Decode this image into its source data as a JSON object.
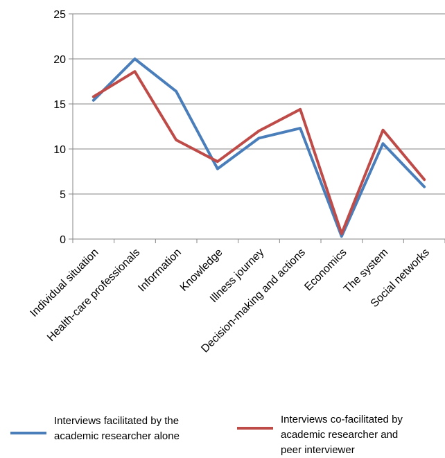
{
  "chart_data": {
    "type": "line",
    "categories": [
      "Individual situation",
      "Health-care professionals",
      "Information",
      "Knowledge",
      "Illness journey",
      "Decision-making and actions",
      "Economics",
      "The system",
      "Social networks"
    ],
    "ylim": [
      0,
      25
    ],
    "yticks": [
      "0",
      "5",
      "10",
      "15",
      "20",
      "25"
    ],
    "grid": "horizontal",
    "legend_position": "bottom",
    "series": [
      {
        "name": "Interviews facilitated by the academic researcher alone",
        "name_lines": [
          "Interviews facilitated by the",
          "academic researcher alone"
        ],
        "color": "#4a7ebb",
        "values": [
          15.4,
          20.0,
          16.4,
          7.8,
          11.2,
          12.3,
          0.3,
          10.6,
          5.8
        ]
      },
      {
        "name": "Interviews co-facilitated by academic researcher and peer interviewer",
        "name_lines": [
          "Interviews co-facilitated by",
          "academic researcher and",
          "peer interviewer"
        ],
        "color": "#be4b48",
        "values": [
          15.8,
          18.6,
          11.0,
          8.6,
          12.0,
          14.4,
          0.6,
          12.1,
          6.6
        ]
      }
    ]
  }
}
